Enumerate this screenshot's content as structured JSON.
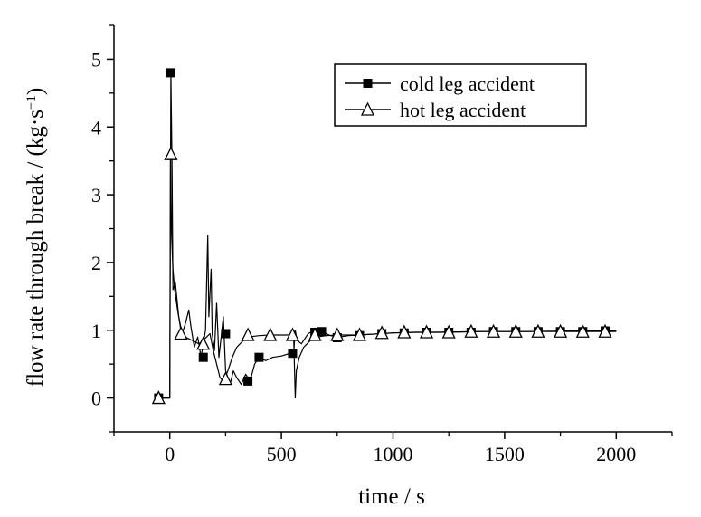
{
  "chart_data": {
    "type": "line",
    "xlabel": "time / s",
    "ylabel_main": "flow rate through break / (kg·s",
    "ylabel_sup": "−1",
    "ylabel_close": ")",
    "xlim": [
      -250,
      2250
    ],
    "ylim": [
      -0.5,
      5.5
    ],
    "xticks": [
      0,
      500,
      1000,
      1500,
      2000
    ],
    "xtick_labels": [
      "0",
      "500",
      "1000",
      "1500",
      "2000"
    ],
    "xminor_ticks": [
      -250,
      250,
      750,
      1250,
      1750,
      2250
    ],
    "yticks": [
      0,
      1,
      2,
      3,
      4,
      5
    ],
    "ytick_labels": [
      "0",
      "1",
      "2",
      "3",
      "4",
      "5"
    ],
    "yminor_ticks": [
      -0.5,
      0.5,
      1.5,
      2.5,
      3.5,
      4.5,
      5.5
    ],
    "grid": false,
    "legend_position": "top-right",
    "series": [
      {
        "name": "cold leg accident",
        "marker": "filled-square",
        "line": [
          [
            -60,
            0
          ],
          [
            -10,
            0
          ],
          [
            0,
            0
          ],
          [
            5,
            4.8
          ],
          [
            10,
            3.4
          ],
          [
            14,
            1.6
          ],
          [
            25,
            1.7
          ],
          [
            40,
            1.2
          ],
          [
            55,
            0.95
          ],
          [
            70,
            1.1
          ],
          [
            85,
            1.3
          ],
          [
            95,
            1.05
          ],
          [
            110,
            0.75
          ],
          [
            125,
            0.9
          ],
          [
            140,
            0.6
          ],
          [
            150,
            0.8
          ],
          [
            160,
            1.0
          ],
          [
            170,
            2.4
          ],
          [
            175,
            1.2
          ],
          [
            185,
            1.9
          ],
          [
            190,
            0.95
          ],
          [
            200,
            0.7
          ],
          [
            210,
            1.4
          ],
          [
            220,
            0.6
          ],
          [
            230,
            0.9
          ],
          [
            240,
            1.2
          ],
          [
            250,
            0.4
          ],
          [
            260,
            0.3
          ],
          [
            270,
            0.2
          ],
          [
            285,
            0.4
          ],
          [
            300,
            0.3
          ],
          [
            320,
            0.2
          ],
          [
            340,
            0.35
          ],
          [
            360,
            0.25
          ],
          [
            380,
            0.5
          ],
          [
            400,
            0.6
          ],
          [
            430,
            0.55
          ],
          [
            460,
            0.6
          ],
          [
            500,
            0.62
          ],
          [
            530,
            0.65
          ],
          [
            555,
            0.66
          ],
          [
            562,
            1.0
          ],
          [
            570,
            0.85
          ],
          [
            590,
            0.8
          ],
          [
            620,
            0.95
          ],
          [
            650,
            1.0
          ],
          [
            680,
            0.98
          ],
          [
            720,
            0.92
          ],
          [
            760,
            0.9
          ],
          [
            800,
            0.92
          ],
          [
            850,
            0.93
          ],
          [
            900,
            0.94
          ],
          [
            950,
            0.95
          ],
          [
            1000,
            0.96
          ],
          [
            1100,
            0.97
          ],
          [
            1200,
            0.97
          ],
          [
            1400,
            0.98
          ],
          [
            1600,
            0.98
          ],
          [
            1800,
            0.99
          ],
          [
            2000,
            0.99
          ]
        ],
        "markers": [
          [
            -50,
            0
          ],
          [
            5,
            4.8
          ],
          [
            150,
            0.6
          ],
          [
            250,
            0.95
          ],
          [
            350,
            0.25
          ],
          [
            400,
            0.6
          ],
          [
            550,
            0.66
          ],
          [
            650,
            0.97
          ],
          [
            680,
            0.98
          ],
          [
            750,
            0.89
          ],
          [
            850,
            0.92
          ],
          [
            950,
            0.95
          ],
          [
            1050,
            0.96
          ],
          [
            1150,
            0.97
          ],
          [
            1250,
            0.97
          ],
          [
            1350,
            0.97
          ],
          [
            1450,
            0.98
          ],
          [
            1550,
            0.98
          ],
          [
            1650,
            0.98
          ],
          [
            1750,
            0.98
          ],
          [
            1850,
            0.98
          ],
          [
            1950,
            0.99
          ]
        ]
      },
      {
        "name": "hot leg accident",
        "marker": "open-triangle",
        "line": [
          [
            -60,
            0
          ],
          [
            -10,
            0
          ],
          [
            0,
            0
          ],
          [
            3,
            3.6
          ],
          [
            8,
            2.4
          ],
          [
            14,
            1.9
          ],
          [
            22,
            1.6
          ],
          [
            35,
            1.3
          ],
          [
            50,
            1.0
          ],
          [
            70,
            0.9
          ],
          [
            100,
            0.85
          ],
          [
            130,
            0.8
          ],
          [
            150,
            0.85
          ],
          [
            165,
            0.9
          ],
          [
            180,
            0.95
          ],
          [
            195,
            0.7
          ],
          [
            210,
            0.5
          ],
          [
            225,
            0.3
          ],
          [
            240,
            0.25
          ],
          [
            260,
            0.4
          ],
          [
            280,
            0.6
          ],
          [
            300,
            0.75
          ],
          [
            330,
            0.85
          ],
          [
            350,
            0.9
          ],
          [
            400,
            0.92
          ],
          [
            450,
            0.93
          ],
          [
            500,
            0.93
          ],
          [
            540,
            0.93
          ],
          [
            555,
            0.9
          ],
          [
            562,
            0.0
          ],
          [
            567,
            0.4
          ],
          [
            580,
            0.6
          ],
          [
            600,
            0.75
          ],
          [
            630,
            0.85
          ],
          [
            660,
            0.9
          ],
          [
            700,
            0.92
          ],
          [
            750,
            0.93
          ],
          [
            800,
            0.93
          ],
          [
            850,
            0.93
          ],
          [
            900,
            0.94
          ],
          [
            950,
            0.95
          ],
          [
            1000,
            0.96
          ],
          [
            1100,
            0.97
          ],
          [
            1200,
            0.97
          ],
          [
            1400,
            0.98
          ],
          [
            1600,
            0.98
          ],
          [
            1800,
            0.98
          ],
          [
            2000,
            0.98
          ]
        ],
        "markers": [
          [
            -50,
            0
          ],
          [
            5,
            3.6
          ],
          [
            50,
            0.95
          ],
          [
            150,
            0.8
          ],
          [
            250,
            0.28
          ],
          [
            350,
            0.93
          ],
          [
            450,
            0.93
          ],
          [
            550,
            0.93
          ],
          [
            650,
            0.93
          ],
          [
            750,
            0.93
          ],
          [
            850,
            0.93
          ],
          [
            950,
            0.96
          ],
          [
            1050,
            0.97
          ],
          [
            1150,
            0.97
          ],
          [
            1250,
            0.97
          ],
          [
            1350,
            0.98
          ],
          [
            1450,
            0.98
          ],
          [
            1550,
            0.98
          ],
          [
            1650,
            0.98
          ],
          [
            1750,
            0.98
          ],
          [
            1850,
            0.98
          ],
          [
            1950,
            0.98
          ]
        ]
      }
    ]
  }
}
